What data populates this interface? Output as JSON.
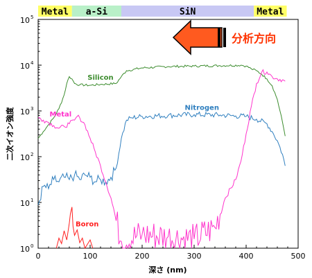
{
  "header_bands": [
    {
      "label": "Metal",
      "x_start": 0,
      "x_end": 65,
      "color": "#ffff66"
    },
    {
      "label": "a-Si",
      "x_start": 65,
      "x_end": 160,
      "color": "#b9f0c8"
    },
    {
      "label": "SiN",
      "x_start": 160,
      "x_end": 415,
      "color": "#c8c8f4"
    },
    {
      "label": "Metal",
      "x_start": 415,
      "x_end": 478,
      "color": "#ffff66"
    }
  ],
  "arrow": {
    "label": "分析方向",
    "color": "#ff5a1f"
  },
  "colors": {
    "silicon": "#3c8c2e",
    "nitrogen": "#2f7fbf",
    "metal": "#ff33cc",
    "boron": "#ff2020"
  },
  "chart_data": {
    "type": "line",
    "xlabel": "深さ (nm)",
    "ylabel": "二次イオン強度",
    "xlim": [
      0,
      500
    ],
    "ylim_log10": [
      0,
      5
    ],
    "y_scale": "log",
    "x_ticks": [
      "0",
      "100",
      "200",
      "300",
      "400",
      "500"
    ],
    "y_ticks": [
      {
        "base": "10",
        "exp": "0"
      },
      {
        "base": "10",
        "exp": "1"
      },
      {
        "base": "10",
        "exp": "2"
      },
      {
        "base": "10",
        "exp": "3"
      },
      {
        "base": "10",
        "exp": "4"
      },
      {
        "base": "10",
        "exp": "5"
      }
    ],
    "grid": false,
    "series": [
      {
        "name": "Silicon",
        "label_at": [
          95,
          3.68
        ],
        "x": [
          0,
          10,
          20,
          30,
          40,
          50,
          55,
          60,
          65,
          70,
          80,
          100,
          120,
          150,
          160,
          170,
          200,
          250,
          300,
          350,
          390,
          400,
          410,
          420,
          430,
          440,
          450,
          460,
          470,
          475
        ],
        "y": [
          2.4,
          2.55,
          2.7,
          2.85,
          3.05,
          3.35,
          3.6,
          3.75,
          3.7,
          3.6,
          3.57,
          3.56,
          3.58,
          3.6,
          3.75,
          3.88,
          3.94,
          3.97,
          3.98,
          3.99,
          4.0,
          3.98,
          3.92,
          3.88,
          3.8,
          3.7,
          3.55,
          3.25,
          2.75,
          2.45
        ]
      },
      {
        "name": "Nitrogen",
        "label_at": [
          282,
          3.02
        ],
        "x": [
          0,
          10,
          20,
          30,
          40,
          50,
          60,
          70,
          80,
          90,
          100,
          110,
          120,
          130,
          140,
          150,
          160,
          170,
          180,
          200,
          250,
          300,
          350,
          380,
          400,
          420,
          440,
          450,
          460,
          470,
          475
        ],
        "y": [
          0.95,
          1.35,
          1.3,
          1.5,
          1.45,
          1.55,
          1.5,
          1.6,
          1.5,
          1.6,
          1.55,
          1.45,
          1.5,
          1.45,
          1.55,
          1.75,
          2.4,
          2.8,
          2.85,
          2.88,
          2.9,
          2.92,
          2.91,
          2.89,
          2.88,
          2.82,
          2.72,
          2.55,
          2.35,
          2.05,
          1.8
        ]
      },
      {
        "name": "Metal",
        "label_at": [
          22,
          2.88
        ],
        "x": [
          0,
          10,
          20,
          30,
          40,
          50,
          60,
          70,
          75,
          80,
          90,
          100,
          110,
          120,
          130,
          140,
          150,
          160,
          200,
          250,
          300,
          340,
          360,
          380,
          390,
          400,
          410,
          420,
          430,
          440,
          450,
          460,
          470,
          475
        ],
        "y": [
          2.85,
          2.8,
          2.75,
          2.68,
          2.62,
          2.66,
          2.72,
          2.8,
          2.88,
          2.85,
          2.7,
          2.4,
          2.1,
          1.8,
          1.45,
          1.1,
          0.6,
          0.15,
          0.3,
          0.25,
          0.2,
          0.45,
          1.1,
          1.5,
          1.9,
          2.5,
          3.1,
          3.6,
          3.85,
          3.85,
          3.75,
          3.7,
          3.68,
          3.65
        ]
      },
      {
        "name": "Boron",
        "label_at": [
          72,
          0.48
        ],
        "x": [
          35,
          40,
          45,
          50,
          55,
          60,
          62,
          65,
          67,
          70,
          75,
          80,
          85,
          90,
          100,
          105
        ],
        "y": [
          0.0,
          0.22,
          0.1,
          0.38,
          0.18,
          0.55,
          0.75,
          0.9,
          0.48,
          0.28,
          0.4,
          0.12,
          0.22,
          0.0,
          0.18,
          0.0
        ]
      }
    ]
  }
}
